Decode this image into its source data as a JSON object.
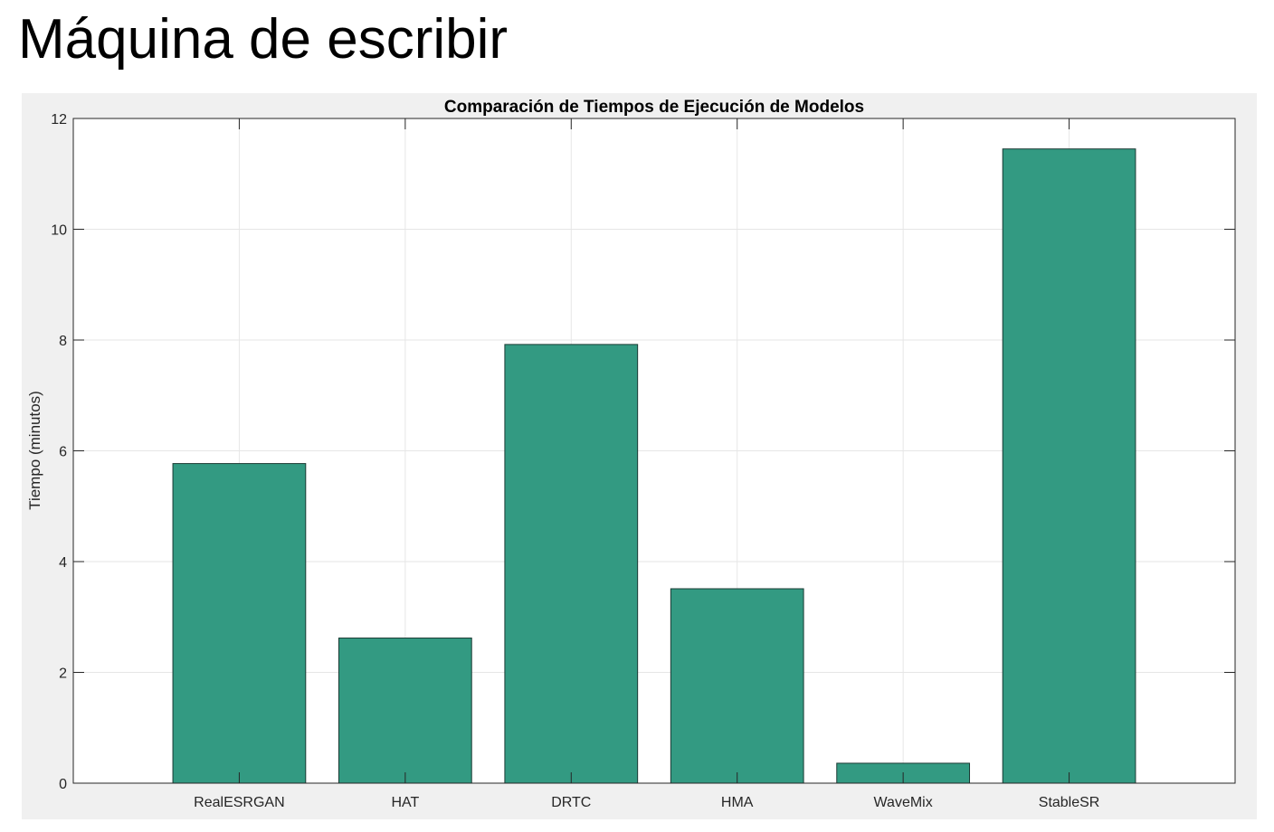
{
  "page": {
    "title": "Máquina de escribir"
  },
  "chart_data": {
    "type": "bar",
    "title": "Comparación de Tiempos de Ejecución de Modelos",
    "xlabel": "",
    "ylabel": "Tiempo (minutos)",
    "categories": [
      "RealESRGAN",
      "HAT",
      "DRTC",
      "HMA",
      "WaveMix",
      "StableSR"
    ],
    "values": [
      5.77,
      2.62,
      7.92,
      3.51,
      0.36,
      11.45
    ],
    "ylim": [
      0,
      12
    ],
    "yticks": [
      0,
      2,
      4,
      6,
      8,
      10,
      12
    ],
    "yticklabels": [
      "0",
      "2",
      "4",
      "6",
      "8",
      "10",
      "12"
    ],
    "grid": true,
    "legend": "none",
    "bar_color": "#339a82",
    "bar_edge_color": "#1a3a33",
    "background_color": "#f0f0f0",
    "axes_color": "#ffffff"
  }
}
